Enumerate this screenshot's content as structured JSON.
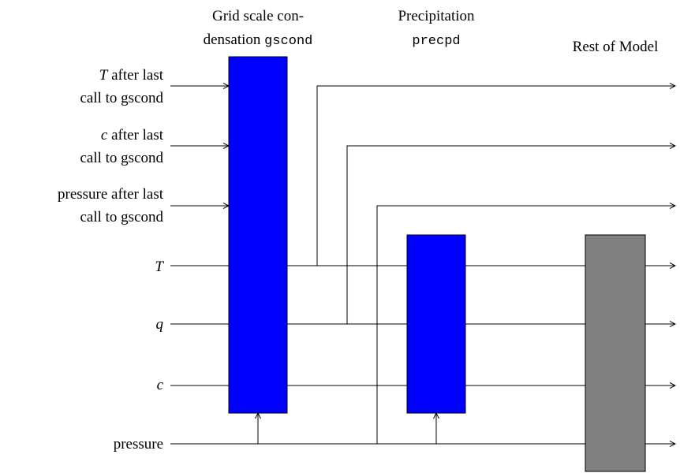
{
  "columns": {
    "gscond": {
      "line1": "Grid scale con-",
      "line2_prefix": "densation ",
      "line2_code": "gscond"
    },
    "precpd": {
      "line1": "Precipitation",
      "line2_code": "precpd"
    },
    "rest": {
      "line1": "Rest of Model"
    }
  },
  "inputs": {
    "t_after": {
      "var": "T",
      "line1_rest": " after last",
      "line2": "call to gscond"
    },
    "c_after": {
      "var": "c",
      "line1_rest": " after last",
      "line2": "call to gscond"
    },
    "p_after": {
      "line1": "pressure after last",
      "line2": "call to gscond"
    },
    "t": {
      "var": "T"
    },
    "q": {
      "var": "q"
    },
    "c": {
      "var": "c"
    },
    "pressure": {
      "label": "pressure"
    }
  },
  "colors": {
    "gscond_box": "#0000ff",
    "precpd_box": "#0000ff",
    "rest_box": "#808080"
  }
}
